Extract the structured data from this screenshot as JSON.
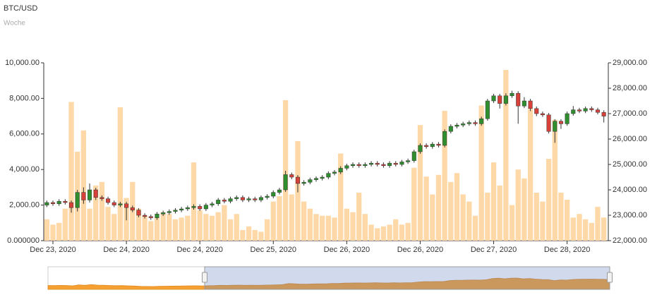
{
  "chart_data": {
    "type": "candlestick",
    "title": "BTC/USD",
    "subtitle": "Woche",
    "xticks": [
      {
        "value": 1,
        "label": "Dec 23, 2020"
      },
      {
        "value": 13,
        "label": "Dec 24, 2020"
      },
      {
        "value": 25,
        "label": "Dec 24, 2020"
      },
      {
        "value": 37,
        "label": "Dec 25, 2020"
      },
      {
        "value": 49,
        "label": "Dec 26, 2020"
      },
      {
        "value": 61,
        "label": "Dec 26, 2020"
      },
      {
        "value": 73,
        "label": "Dec 27, 2020"
      },
      {
        "value": 85,
        "label": "Dec 28, 2020"
      }
    ],
    "open": [
      23400,
      23500,
      23450,
      23550,
      23500,
      23300,
      23900,
      23600,
      24000,
      23700,
      23650,
      23500,
      23400,
      23450,
      23300,
      23200,
      23000,
      22950,
      22900,
      23050,
      23100,
      23150,
      23200,
      23250,
      23300,
      23350,
      23250,
      23400,
      23450,
      23600,
      23550,
      23650,
      23700,
      23600,
      23650,
      23600,
      23700,
      23750,
      23900,
      24000,
      24600,
      24500,
      24250,
      24300,
      24400,
      24450,
      24500,
      24650,
      24700,
      24850,
      24950,
      25000,
      24950,
      25000,
      25050,
      25000,
      24950,
      25050,
      25000,
      25100,
      25150,
      25500,
      25750,
      25700,
      25800,
      25750,
      26300,
      26500,
      26550,
      26600,
      26650,
      26600,
      26800,
      27500,
      27700,
      27400,
      27700,
      27800,
      27300,
      27500,
      27200,
      27000,
      26950,
      26300,
      26700,
      26600,
      27000,
      27150,
      27100,
      27200,
      27150,
      27050
    ],
    "high": [
      23580,
      23580,
      23630,
      23630,
      23580,
      24000,
      24100,
      24250,
      24080,
      23780,
      23730,
      23580,
      23530,
      23530,
      23380,
      23280,
      23080,
      23030,
      23130,
      23180,
      23230,
      23280,
      23330,
      23380,
      23430,
      23430,
      23480,
      23530,
      23680,
      23680,
      23730,
      23780,
      23780,
      23730,
      23730,
      23780,
      23830,
      23980,
      24080,
      24750,
      24680,
      24580,
      24380,
      24480,
      24530,
      24580,
      24730,
      24780,
      24930,
      25030,
      25080,
      25080,
      25080,
      25130,
      25130,
      25080,
      25130,
      25130,
      25180,
      25230,
      25580,
      25830,
      25830,
      25880,
      25880,
      26380,
      26580,
      26630,
      26680,
      26730,
      26730,
      26880,
      27580,
      27780,
      27780,
      27800,
      27900,
      27880,
      27650,
      27580,
      27280,
      27080,
      27030,
      26780,
      26780,
      27080,
      27300,
      27230,
      27280,
      27280,
      27230,
      27130
    ],
    "low": [
      23320,
      23370,
      23370,
      23420,
      23100,
      23150,
      23450,
      23500,
      23600,
      23570,
      23420,
      23320,
      23320,
      22800,
      23120,
      22920,
      22870,
      22820,
      22820,
      22970,
      23020,
      23070,
      23120,
      23170,
      23220,
      23170,
      23170,
      23320,
      23370,
      23470,
      23470,
      23570,
      23520,
      23520,
      23520,
      23520,
      23620,
      23670,
      23820,
      23920,
      24420,
      23900,
      24170,
      24220,
      24320,
      24370,
      24420,
      24570,
      24620,
      24770,
      24870,
      24870,
      24870,
      24920,
      24920,
      24870,
      24870,
      24920,
      24920,
      25020,
      25070,
      25420,
      25620,
      25620,
      25670,
      25670,
      26220,
      26420,
      26470,
      26520,
      26520,
      26520,
      26720,
      27420,
      27200,
      27320,
      27620,
      26600,
      27220,
      27100,
      26900,
      26870,
      26220,
      25850,
      26400,
      26520,
      26920,
      27020,
      27020,
      27070,
      26970,
      26650
    ],
    "close": [
      23500,
      23450,
      23550,
      23500,
      23300,
      23900,
      23600,
      24000,
      23700,
      23650,
      23500,
      23400,
      23450,
      23300,
      23200,
      23000,
      22950,
      22900,
      23050,
      23100,
      23150,
      23200,
      23250,
      23300,
      23350,
      23250,
      23400,
      23450,
      23600,
      23550,
      23650,
      23700,
      23600,
      23650,
      23600,
      23700,
      23750,
      23900,
      24000,
      24600,
      24500,
      24250,
      24300,
      24400,
      24450,
      24500,
      24650,
      24700,
      24850,
      24950,
      25000,
      24950,
      25000,
      25050,
      25000,
      24950,
      25050,
      25000,
      25100,
      25150,
      25500,
      25750,
      25700,
      25800,
      25750,
      26300,
      26500,
      26550,
      26600,
      26650,
      26600,
      26800,
      27500,
      27700,
      27400,
      27700,
      27800,
      27300,
      27500,
      27200,
      27000,
      26950,
      26300,
      26700,
      26600,
      27000,
      27150,
      27100,
      27200,
      27150,
      27050,
      26900
    ],
    "volume": [
      1200,
      900,
      1000,
      1800,
      7800,
      5000,
      6200,
      1800,
      3100,
      3300,
      1900,
      1500,
      7500,
      2400,
      3300,
      1800,
      1400,
      1100,
      1300,
      1600,
      1500,
      1200,
      1300,
      1400,
      4400,
      1700,
      1500,
      1400,
      1600,
      2000,
      1200,
      1500,
      600,
      800,
      600,
      500,
      1200,
      2200,
      2500,
      7900,
      2600,
      5600,
      2200,
      1800,
      1500,
      1400,
      1400,
      1300,
      4900,
      1800,
      1600,
      2700,
      1500,
      900,
      700,
      800,
      900,
      1200,
      900,
      1000,
      4100,
      6500,
      3600,
      2600,
      3700,
      7300,
      3300,
      3800,
      2600,
      2200,
      1400,
      7600,
      2700,
      4400,
      3100,
      9600,
      2000,
      4000,
      3500,
      7400,
      2700,
      2200,
      4600,
      6800,
      2700,
      2300,
      1300,
      1500,
      1200,
      1000,
      1900,
      1300
    ],
    "up_color": "#2f8f2f",
    "down_color": "#d8403a",
    "volume_color": "#fed8a6",
    "navigator_color": "#f5a030",
    "ylim": [
      0,
      10000
    ],
    "yticks": [
      {
        "value": 0,
        "label": "0.000000"
      },
      {
        "value": 2000,
        "label": "2,000.00"
      },
      {
        "value": 4000,
        "label": "4,000.00"
      },
      {
        "value": 6000,
        "label": "6,000.00"
      },
      {
        "value": 8000,
        "label": "8,000.00"
      },
      {
        "value": 10000,
        "label": "10,000.00"
      }
    ],
    "y2lim": [
      22000,
      29000
    ],
    "y2ticks": [
      {
        "value": 22000,
        "label": "22,000.00"
      },
      {
        "value": 23000,
        "label": "23,000.00"
      },
      {
        "value": 24000,
        "label": "24,000.00"
      },
      {
        "value": 25000,
        "label": "25,000.00"
      },
      {
        "value": 26000,
        "label": "26,000.00"
      },
      {
        "value": 27000,
        "label": "27,000.00"
      },
      {
        "value": 28000,
        "label": "28,000.00"
      },
      {
        "value": 29000,
        "label": "29,000.00"
      }
    ]
  }
}
